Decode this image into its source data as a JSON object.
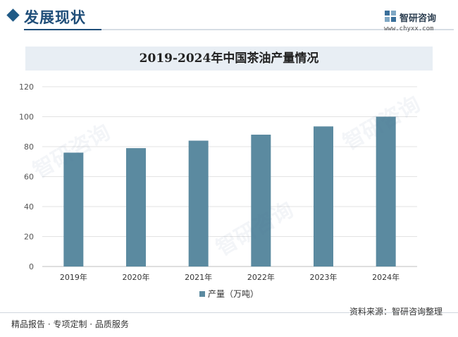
{
  "header": {
    "section_title": "发展现状",
    "logo_name": "智研咨询",
    "logo_url": "www.chyxx.com"
  },
  "chart_data": {
    "type": "bar",
    "title": "2019-2024年中国茶油产量情况",
    "categories": [
      "2019年",
      "2020年",
      "2021年",
      "2022年",
      "2023年",
      "2024年"
    ],
    "series": [
      {
        "name": "产量（万吨）",
        "values": [
          76,
          79,
          84,
          88,
          93.5,
          100
        ]
      }
    ],
    "ylim": [
      0,
      120
    ],
    "yticks": [
      0,
      20,
      40,
      60,
      80,
      100,
      120
    ],
    "grid": true,
    "legend_position": "bottom",
    "colors": {
      "bar": "#5b8aa0",
      "grid": "#e3e3e3"
    }
  },
  "footer": {
    "left_text": "精品报告 · 专项定制 · 品质服务",
    "source_text": "资料来源：智研咨询整理"
  },
  "watermark_text": "智研咨询"
}
